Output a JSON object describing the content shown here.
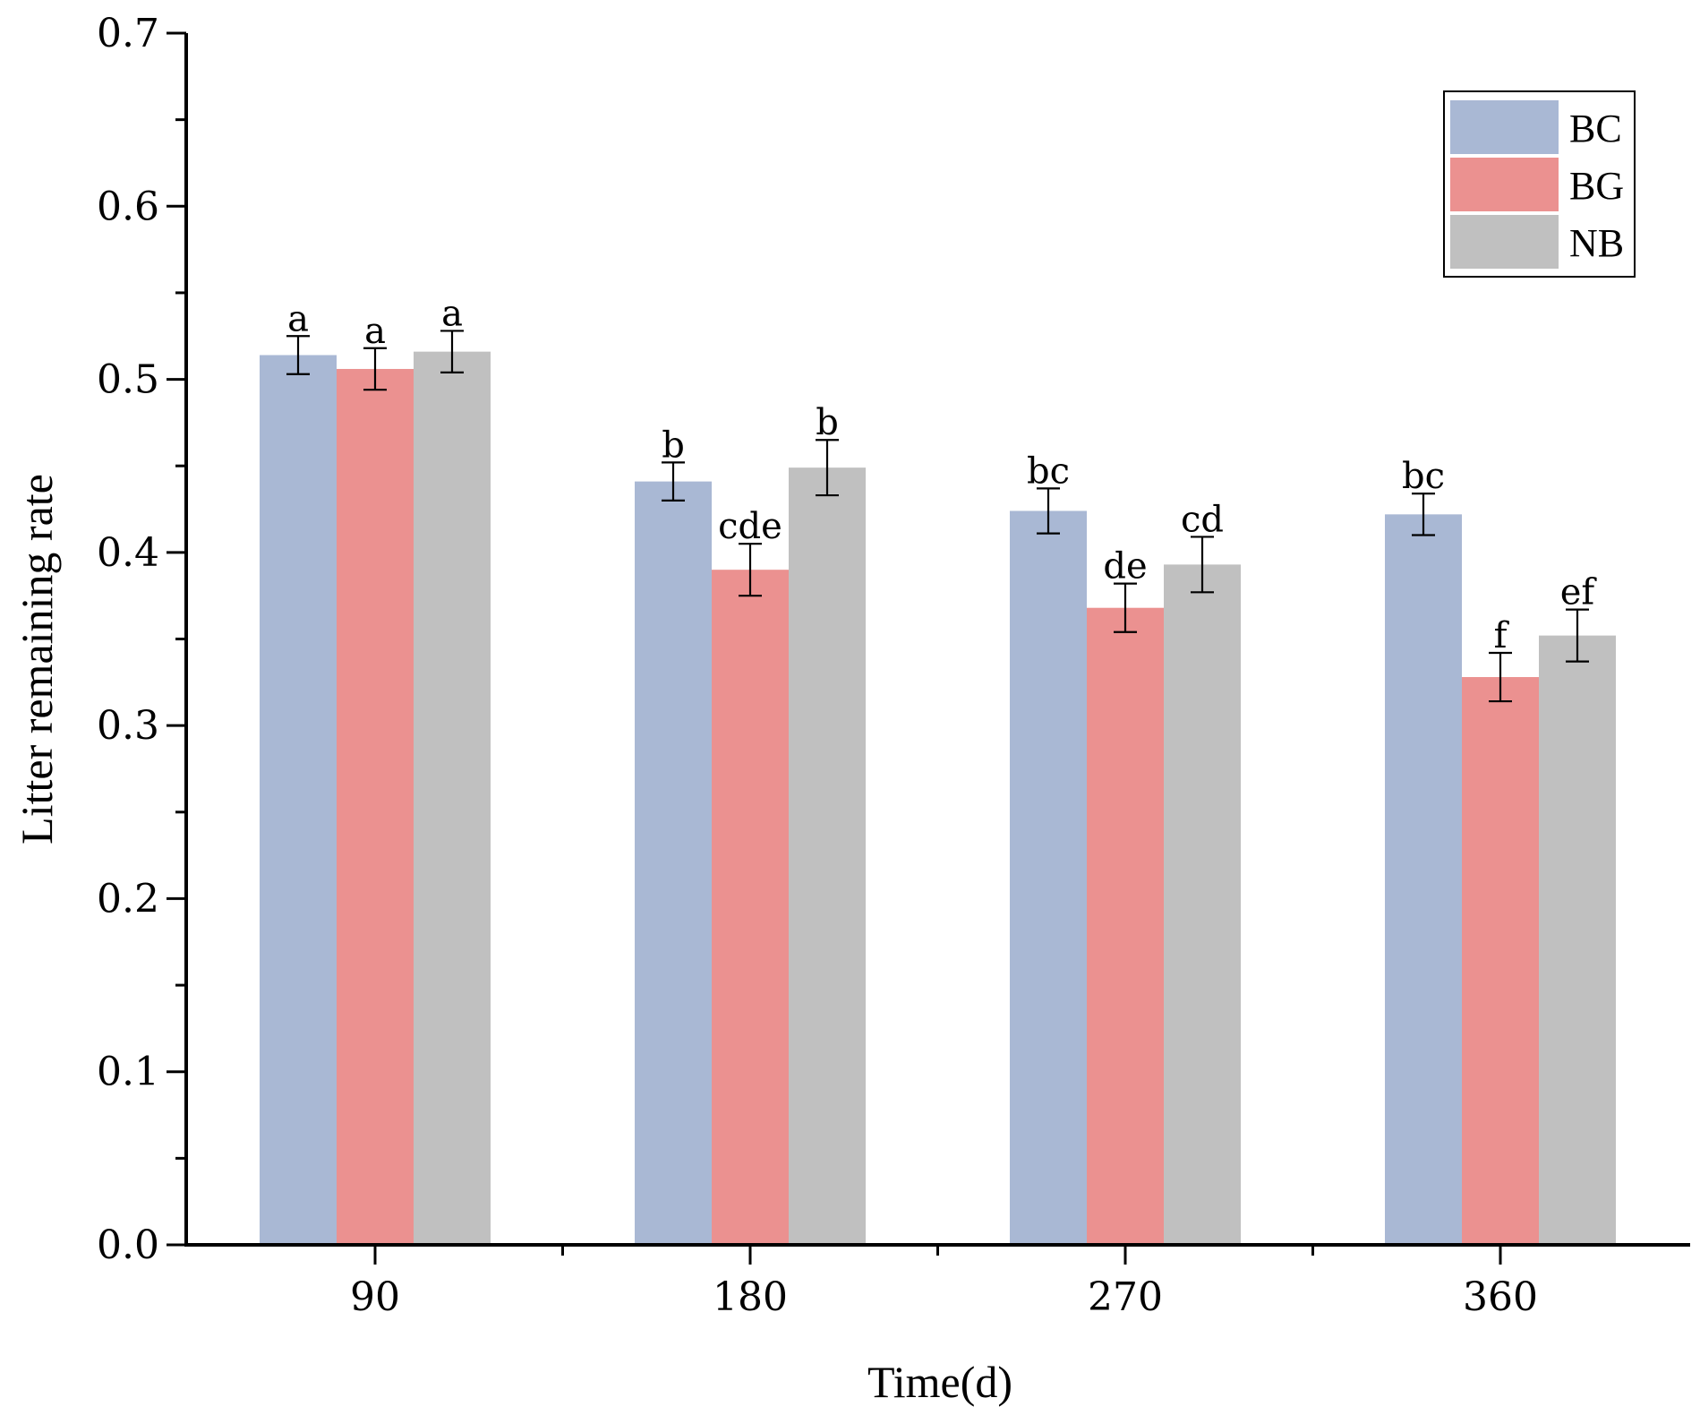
{
  "chart_data": {
    "type": "bar",
    "title": "",
    "xlabel": "Time(d)",
    "ylabel": "Litter remaining rate",
    "ylim": [
      0,
      0.7
    ],
    "yticks": [
      "0.0",
      "0.1",
      "0.2",
      "0.3",
      "0.4",
      "0.5",
      "0.6",
      "0.7"
    ],
    "categories": [
      "90",
      "180",
      "270",
      "360"
    ],
    "legend_position": "top-right",
    "series": [
      {
        "name": "BC",
        "color": "#a9b8d4",
        "values": [
          0.514,
          0.441,
          0.424,
          0.422
        ],
        "errors": [
          0.011,
          0.011,
          0.013,
          0.012
        ],
        "labels": [
          "a",
          "b",
          "bc",
          "bc"
        ]
      },
      {
        "name": "BG",
        "color": "#eb9190",
        "values": [
          0.506,
          0.39,
          0.368,
          0.328
        ],
        "errors": [
          0.012,
          0.015,
          0.014,
          0.014
        ],
        "labels": [
          "a",
          "cde",
          "de",
          "f"
        ]
      },
      {
        "name": "NB",
        "color": "#c0c0c0",
        "values": [
          0.516,
          0.449,
          0.393,
          0.352
        ],
        "errors": [
          0.012,
          0.016,
          0.016,
          0.015
        ],
        "labels": [
          "a",
          "b",
          "cd",
          "ef"
        ]
      }
    ]
  }
}
